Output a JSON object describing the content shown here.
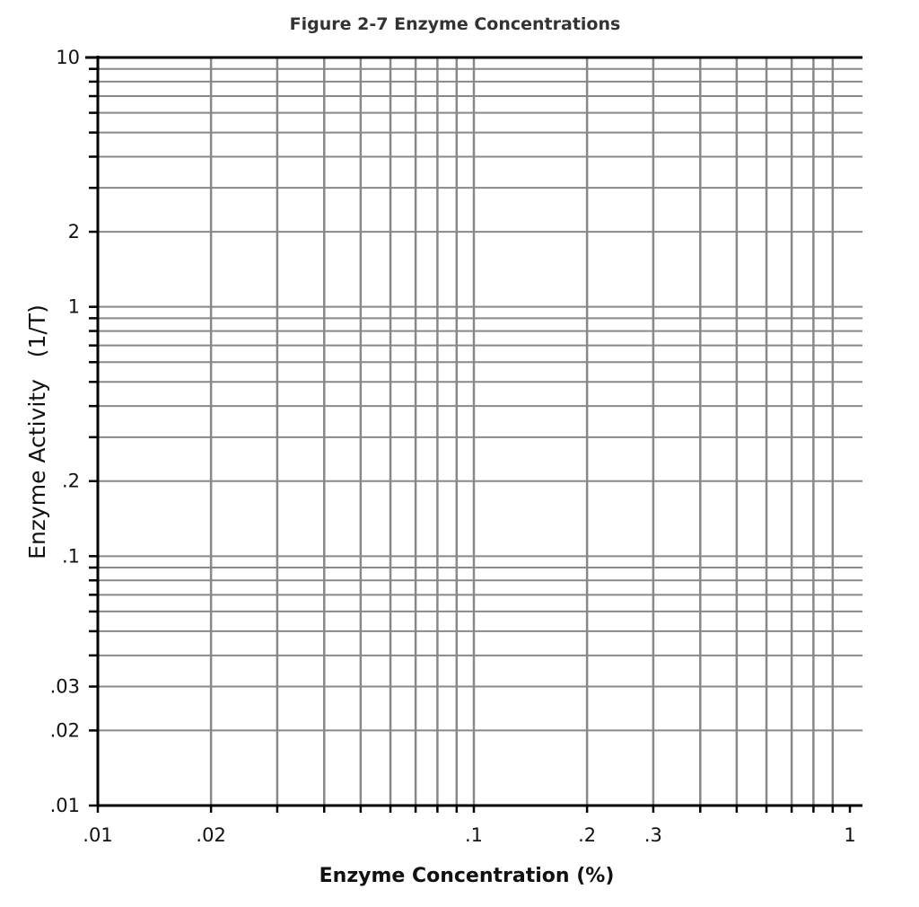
{
  "chart_data": {
    "type": "scatter",
    "title": "Figure 2-7 Enzyme Concentrations",
    "xlabel": "Enzyme Concentration (%)",
    "ylabel": "Enzyme Activity   (1/T)",
    "x_scale": "log",
    "y_scale": "log",
    "xlim": [
      0.01,
      1
    ],
    "ylim": [
      0.01,
      10
    ],
    "grid": true,
    "series": [],
    "x_ticks": [
      {
        "value": 0.01,
        "label": ".01"
      },
      {
        "value": 0.02,
        "label": ".02"
      },
      {
        "value": 0.1,
        "label": ".1"
      },
      {
        "value": 0.2,
        "label": ".2"
      },
      {
        "value": 0.3,
        "label": ".3"
      },
      {
        "value": 1,
        "label": "1"
      }
    ],
    "y_ticks": [
      {
        "value": 10,
        "label": "10"
      },
      {
        "value": 2,
        "label": "2"
      },
      {
        "value": 1,
        "label": "1"
      },
      {
        "value": 0.2,
        "label": ".2"
      },
      {
        "value": 0.1,
        "label": ".1"
      },
      {
        "value": 0.03,
        "label": ".03"
      },
      {
        "value": 0.02,
        "label": ".02"
      },
      {
        "value": 0.01,
        "label": ".01"
      }
    ],
    "x_gridlines": [
      0.02,
      0.03,
      0.04,
      0.05,
      0.06,
      0.07,
      0.08,
      0.09,
      0.1,
      0.2,
      0.3,
      0.4,
      0.5,
      0.6,
      0.7,
      0.8,
      0.9
    ],
    "y_gridlines": [
      0.02,
      0.03,
      0.04,
      0.05,
      0.06,
      0.07,
      0.08,
      0.09,
      0.1,
      0.2,
      0.3,
      0.4,
      0.5,
      0.6,
      0.7,
      0.8,
      0.9,
      1,
      2,
      3,
      4,
      5,
      6,
      7,
      8,
      9
    ],
    "colors": {
      "grid": "#888888",
      "axis": "#000000",
      "text": "#111111",
      "title": "#333333"
    }
  }
}
